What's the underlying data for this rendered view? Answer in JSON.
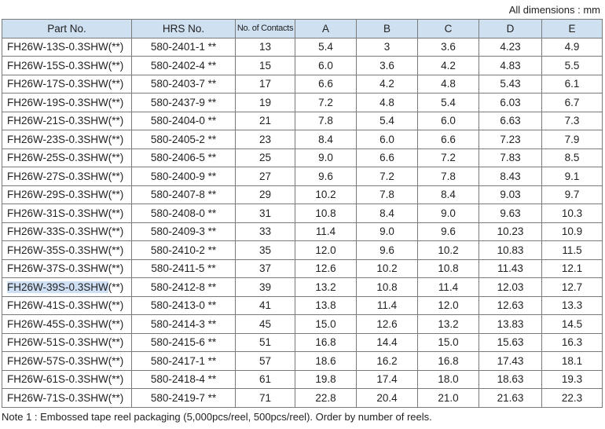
{
  "units_note": "All dimensions : mm",
  "columns": [
    "Part No.",
    "HRS No.",
    "No. of Contacts",
    "A",
    "B",
    "C",
    "D",
    "E"
  ],
  "rows": [
    [
      "FH26W-13S-0.3SHW(**)",
      "580-2401-1 **",
      "13",
      "5.4",
      "3",
      "3.6",
      "4.23",
      "4.9"
    ],
    [
      "FH26W-15S-0.3SHW(**)",
      "580-2402-4 **",
      "15",
      "6.0",
      "3.6",
      "4.2",
      "4.83",
      "5.5"
    ],
    [
      "FH26W-17S-0.3SHW(**)",
      "580-2403-7 **",
      "17",
      "6.6",
      "4.2",
      "4.8",
      "5.43",
      "6.1"
    ],
    [
      "FH26W-19S-0.3SHW(**)",
      "580-2437-9 **",
      "19",
      "7.2",
      "4.8",
      "5.4",
      "6.03",
      "6.7"
    ],
    [
      "FH26W-21S-0.3SHW(**)",
      "580-2404-0 **",
      "21",
      "7.8",
      "5.4",
      "6.0",
      "6.63",
      "7.3"
    ],
    [
      "FH26W-23S-0.3SHW(**)",
      "580-2405-2 **",
      "23",
      "8.4",
      "6.0",
      "6.6",
      "7.23",
      "7.9"
    ],
    [
      "FH26W-25S-0.3SHW(**)",
      "580-2406-5 **",
      "25",
      "9.0",
      "6.6",
      "7.2",
      "7.83",
      "8.5"
    ],
    [
      "FH26W-27S-0.3SHW(**)",
      "580-2400-9 **",
      "27",
      "9.6",
      "7.2",
      "7.8",
      "8.43",
      "9.1"
    ],
    [
      "FH26W-29S-0.3SHW(**)",
      "580-2407-8 **",
      "29",
      "10.2",
      "7.8",
      "8.4",
      "9.03",
      "9.7"
    ],
    [
      "FH26W-31S-0.3SHW(**)",
      "580-2408-0 **",
      "31",
      "10.8",
      "8.4",
      "9.0",
      "9.63",
      "10.3"
    ],
    [
      "FH26W-33S-0.3SHW(**)",
      "580-2409-3 **",
      "33",
      "11.4",
      "9.0",
      "9.6",
      "10.23",
      "10.9"
    ],
    [
      "FH26W-35S-0.3SHW(**)",
      "580-2410-2 **",
      "35",
      "12.0",
      "9.6",
      "10.2",
      "10.83",
      "11.5"
    ],
    [
      "FH26W-37S-0.3SHW(**)",
      "580-2411-5 **",
      "37",
      "12.6",
      "10.2",
      "10.8",
      "11.43",
      "12.1"
    ],
    [
      "FH26W-39S-0.3SHW(**)",
      "580-2412-8 **",
      "39",
      "13.2",
      "10.8",
      "11.4",
      "12.03",
      "12.7"
    ],
    [
      "FH26W-41S-0.3SHW(**)",
      "580-2413-0 **",
      "41",
      "13.8",
      "11.4",
      "12.0",
      "12.63",
      "13.3"
    ],
    [
      "FH26W-45S-0.3SHW(**)",
      "580-2414-3 **",
      "45",
      "15.0",
      "12.6",
      "13.2",
      "13.83",
      "14.5"
    ],
    [
      "FH26W-51S-0.3SHW(**)",
      "580-2415-6 **",
      "51",
      "16.8",
      "14.4",
      "15.0",
      "15.63",
      "16.3"
    ],
    [
      "FH26W-57S-0.3SHW(**)",
      "580-2417-1 **",
      "57",
      "18.6",
      "16.2",
      "16.8",
      "17.43",
      "18.1"
    ],
    [
      "FH26W-61S-0.3SHW(**)",
      "580-2418-4 **",
      "61",
      "19.8",
      "17.4",
      "18.0",
      "18.63",
      "19.3"
    ],
    [
      "FH26W-71S-0.3SHW(**)",
      "580-2419-7 **",
      "71",
      "22.8",
      "20.4",
      "21.0",
      "21.63",
      "22.3"
    ]
  ],
  "selection": {
    "row": 13,
    "selected_text": "FH26W-39S-0.3SHW",
    "rest_text": "(**)"
  },
  "note": "Note 1 : Embossed tape reel packaging (5,000pcs/reel, 500pcs/reel). Order by number of reels.",
  "colors": {
    "header_bg": "#cfe0f1",
    "selection_bg": "#cfe0f5",
    "border": "#7a7a7a"
  }
}
